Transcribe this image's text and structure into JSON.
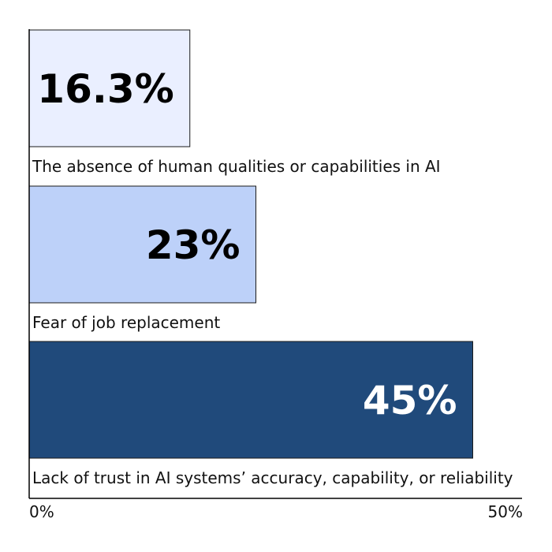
{
  "chart_data": {
    "type": "bar",
    "orientation": "horizontal",
    "categories": [
      "The absence of human qualities or capabilities in AI",
      "Fear of job replacement",
      "Lack of trust in AI systems’ accuracy, capability, or reliability"
    ],
    "values": [
      16.3,
      23,
      45
    ],
    "value_labels": [
      "16.3%",
      "23%",
      "45%"
    ],
    "bar_colors": [
      "#eaefff",
      "#bdd1f9",
      "#204a7b"
    ],
    "value_label_colors": [
      "#000000",
      "#000000",
      "#ffffff"
    ],
    "xlim": [
      0,
      50
    ],
    "x_tick_labels": [
      "0%",
      "50%"
    ],
    "title": "",
    "xlabel": "",
    "ylabel": "",
    "grid": false,
    "legend": false
  }
}
